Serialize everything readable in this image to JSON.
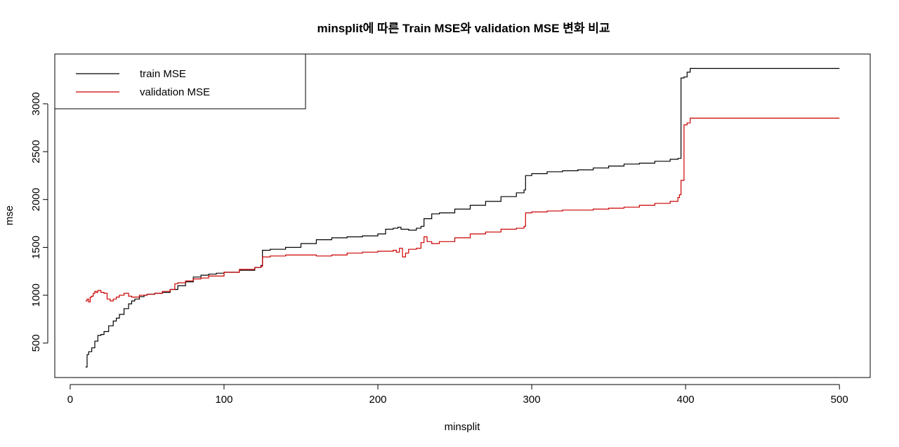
{
  "chart_data": {
    "type": "line",
    "title": "minsplit에 따른 Train MSE와 validation MSE 변화 비교",
    "xlabel": "minsplit",
    "ylabel": "mse",
    "xlim": [
      -10,
      520
    ],
    "ylim": [
      140,
      3520
    ],
    "x_ticks": [
      0,
      100,
      200,
      300,
      400,
      500
    ],
    "x_tick_labels": [
      "0",
      "100",
      "200",
      "300",
      "400",
      "500"
    ],
    "y_ticks": [
      500,
      1000,
      1500,
      2000,
      2500,
      3000
    ],
    "y_tick_labels": [
      "500",
      "1000",
      "1500",
      "2000",
      "2500",
      "3000"
    ],
    "grid": false,
    "legend_position": "top-left",
    "series": [
      {
        "name": "train MSE",
        "color": "#000000",
        "x": [
          10,
          11,
          12,
          14,
          16,
          18,
          20,
          22,
          25,
          28,
          30,
          32,
          35,
          38,
          40,
          42,
          45,
          48,
          50,
          55,
          60,
          65,
          70,
          75,
          80,
          85,
          90,
          95,
          100,
          110,
          120,
          124,
          125,
          130,
          140,
          150,
          160,
          170,
          180,
          190,
          200,
          205,
          210,
          213,
          215,
          220,
          225,
          228,
          230,
          235,
          240,
          250,
          260,
          270,
          280,
          290,
          295,
          296,
          300,
          310,
          320,
          330,
          340,
          350,
          360,
          370,
          380,
          390,
          395,
          397,
          399,
          401,
          403,
          420,
          450,
          480,
          500
        ],
        "values": [
          250,
          380,
          410,
          450,
          520,
          580,
          590,
          620,
          680,
          730,
          760,
          800,
          860,
          910,
          940,
          960,
          985,
          1000,
          1010,
          1020,
          1030,
          1060,
          1100,
          1140,
          1190,
          1210,
          1220,
          1230,
          1240,
          1260,
          1290,
          1310,
          1470,
          1480,
          1500,
          1540,
          1580,
          1600,
          1610,
          1620,
          1640,
          1690,
          1700,
          1710,
          1690,
          1680,
          1700,
          1720,
          1800,
          1850,
          1860,
          1900,
          1940,
          1980,
          2030,
          2070,
          2100,
          2250,
          2270,
          2290,
          2300,
          2310,
          2330,
          2350,
          2370,
          2380,
          2400,
          2420,
          2430,
          3270,
          3280,
          3330,
          3370,
          3370,
          3370,
          3370,
          3370
        ]
      },
      {
        "name": "validation MSE",
        "color": "#cc0000",
        "x": [
          10,
          11,
          12,
          13,
          14,
          15,
          16,
          17,
          18,
          20,
          22,
          24,
          26,
          28,
          30,
          32,
          35,
          38,
          40,
          45,
          50,
          55,
          60,
          65,
          68,
          70,
          75,
          80,
          85,
          90,
          100,
          110,
          120,
          124,
          125,
          130,
          140,
          150,
          160,
          170,
          180,
          190,
          200,
          210,
          212,
          214,
          216,
          218,
          220,
          225,
          228,
          230,
          232,
          235,
          240,
          250,
          260,
          270,
          280,
          290,
          295,
          296,
          300,
          310,
          320,
          330,
          340,
          350,
          360,
          370,
          380,
          390,
          395,
          396,
          397,
          399,
          401,
          403,
          420,
          450,
          480,
          500
        ],
        "values": [
          940,
          960,
          930,
          980,
          990,
          1020,
          1040,
          1030,
          1050,
          1030,
          1020,
          960,
          940,
          960,
          980,
          1000,
          1020,
          990,
          980,
          1000,
          1010,
          1020,
          1040,
          1060,
          1120,
          1130,
          1150,
          1170,
          1180,
          1200,
          1240,
          1270,
          1290,
          1300,
          1400,
          1410,
          1420,
          1420,
          1410,
          1420,
          1440,
          1450,
          1460,
          1470,
          1450,
          1490,
          1400,
          1440,
          1480,
          1490,
          1550,
          1610,
          1560,
          1540,
          1560,
          1600,
          1640,
          1660,
          1690,
          1700,
          1720,
          1860,
          1870,
          1880,
          1890,
          1890,
          1900,
          1910,
          1920,
          1940,
          1960,
          1980,
          2020,
          2050,
          2200,
          2780,
          2800,
          2850,
          2850,
          2850,
          2850,
          2850
        ]
      }
    ]
  }
}
